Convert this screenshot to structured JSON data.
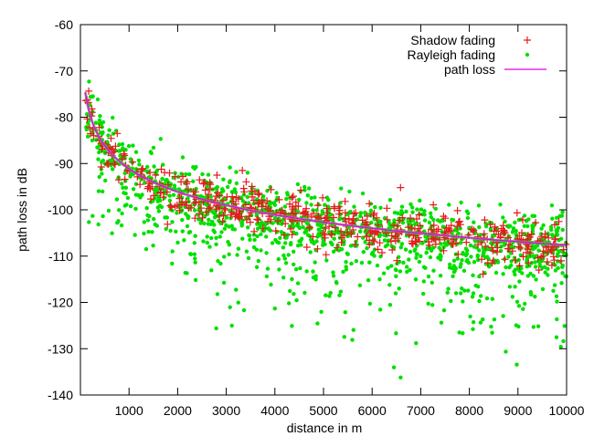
{
  "chart_data": {
    "type": "scatter",
    "title": "",
    "xlabel": "distance in m",
    "ylabel": "path loss in dB",
    "xlim": [
      0,
      10000
    ],
    "ylim": [
      -140,
      -60
    ],
    "x_ticks": [
      1000,
      2000,
      3000,
      4000,
      5000,
      6000,
      7000,
      8000,
      9000,
      10000
    ],
    "y_ticks": [
      -140,
      -130,
      -120,
      -110,
      -100,
      -90,
      -80,
      -70,
      -60
    ],
    "legend_position": "top-right",
    "path_loss_model": {
      "description_points_x": [
        100,
        250,
        500,
        1000,
        1500,
        2000,
        3000,
        4000,
        5000,
        6000,
        7000,
        8000,
        9000,
        10000
      ],
      "description_points_y": [
        -74.6,
        -78.6,
        -84.0,
        -89.4,
        -92.5,
        -94.8,
        -98.0,
        -100.2,
        -101.9,
        -103.3,
        -104.5,
        -105.5,
        -106.4,
        -107.3
      ]
    },
    "series": [
      {
        "name": "Shadow fading",
        "marker": "plus",
        "color": "#e41a1c",
        "spread_db": 2.5,
        "count": 500
      },
      {
        "name": "Rayleigh fading",
        "marker": "dot",
        "color": "#00e000",
        "spread_db": 6,
        "count": 1400
      },
      {
        "name": "path loss",
        "marker": "line",
        "color": "#e000e0"
      }
    ]
  }
}
